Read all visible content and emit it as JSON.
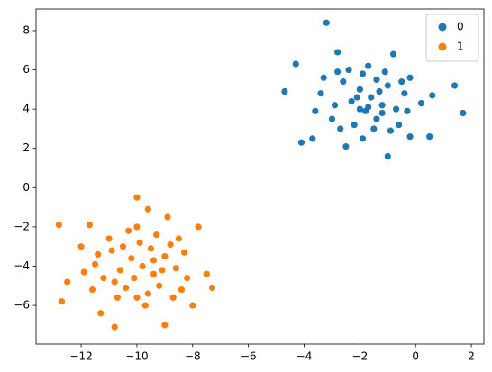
{
  "chart_data": {
    "type": "scatter",
    "xlim": [
      -13.62,
      2.45
    ],
    "ylim": [
      -7.97,
      9.1
    ],
    "xticks": [
      {
        "value": -12,
        "label": "−12"
      },
      {
        "value": -10,
        "label": "−10"
      },
      {
        "value": -8,
        "label": "−8"
      },
      {
        "value": -6,
        "label": "−6"
      },
      {
        "value": -4,
        "label": "−4"
      },
      {
        "value": -2,
        "label": "−2"
      },
      0,
      2
    ],
    "yticks": [
      {
        "value": -6,
        "label": "−6"
      },
      {
        "value": -4,
        "label": "−4"
      },
      {
        "value": -2,
        "label": "−2"
      },
      0,
      2,
      4,
      6,
      8
    ],
    "legend": "upper right",
    "series": [
      {
        "name": "0",
        "color": "#1f77b4",
        "x": [
          -3.2,
          -4.7,
          -4.3,
          1.7,
          1.4,
          -2.8,
          -1.0,
          -4.1,
          -0.8,
          0.6,
          0.5,
          -3.7,
          -2.5,
          -0.2,
          -3.3,
          -1.6,
          -1.2,
          -2.0,
          -1.8,
          -1.0,
          -2.3,
          -1.4,
          -0.7,
          -2.6,
          -1.9,
          -1.1,
          -0.4,
          -2.9,
          -1.5,
          -2.2,
          -0.6,
          -3.0,
          -1.7,
          -2.4,
          -0.9,
          -1.3,
          -2.1,
          -1.7,
          -0.3,
          -3.4,
          -2.7,
          -0.2,
          -1.9,
          -3.6,
          -0.5,
          -1.4,
          -2.8,
          0.2,
          -1.2,
          -2.0
        ],
        "y": [
          8.4,
          4.9,
          6.3,
          3.8,
          5.2,
          6.9,
          1.6,
          2.3,
          6.8,
          4.7,
          2.6,
          2.5,
          2.1,
          5.6,
          5.6,
          4.6,
          4.2,
          5.0,
          3.9,
          5.2,
          4.4,
          3.5,
          4.0,
          5.4,
          5.8,
          5.9,
          4.8,
          4.2,
          3.0,
          3.2,
          3.2,
          3.5,
          6.2,
          6.0,
          2.9,
          4.9,
          4.6,
          4.1,
          3.9,
          4.8,
          3.0,
          2.6,
          2.5,
          3.9,
          5.4,
          5.5,
          5.9,
          4.3,
          3.8,
          4.0
        ]
      },
      {
        "name": "1",
        "color": "#ff7f0e",
        "x": [
          -12.8,
          -12.7,
          -10.8,
          -10.0,
          -7.3,
          -7.8,
          -9.0,
          -12.5,
          -11.7,
          -9.6,
          -8.9,
          -7.5,
          -12.0,
          -11.3,
          -8.0,
          -9.8,
          -10.2,
          -9.4,
          -10.6,
          -9.0,
          -10.9,
          -9.2,
          -10.4,
          -8.6,
          -11.2,
          -9.9,
          -10.0,
          -8.8,
          -11.0,
          -9.5,
          -10.7,
          -8.4,
          -11.5,
          -9.3,
          -10.3,
          -8.3,
          -11.6,
          -9.7,
          -10.1,
          -9.1,
          -8.5,
          -11.9,
          -10.5,
          -9.6,
          -8.2,
          -11.4,
          -10.8,
          -9.4,
          -10.0,
          -8.7
        ],
        "y": [
          -1.9,
          -5.8,
          -7.1,
          -0.5,
          -5.1,
          -2.0,
          -7.0,
          -4.8,
          -1.9,
          -1.1,
          -1.5,
          -4.4,
          -3.0,
          -6.4,
          -6.0,
          -4.0,
          -3.6,
          -4.4,
          -4.2,
          -3.5,
          -3.2,
          -5.0,
          -5.1,
          -4.1,
          -4.6,
          -2.8,
          -5.6,
          -2.9,
          -2.6,
          -3.1,
          -5.6,
          -5.2,
          -3.9,
          -2.4,
          -2.2,
          -3.3,
          -5.2,
          -6.0,
          -4.6,
          -4.2,
          -2.6,
          -4.3,
          -3.0,
          -5.4,
          -4.6,
          -3.4,
          -4.8,
          -3.7,
          -2.0,
          -5.6
        ]
      }
    ]
  }
}
